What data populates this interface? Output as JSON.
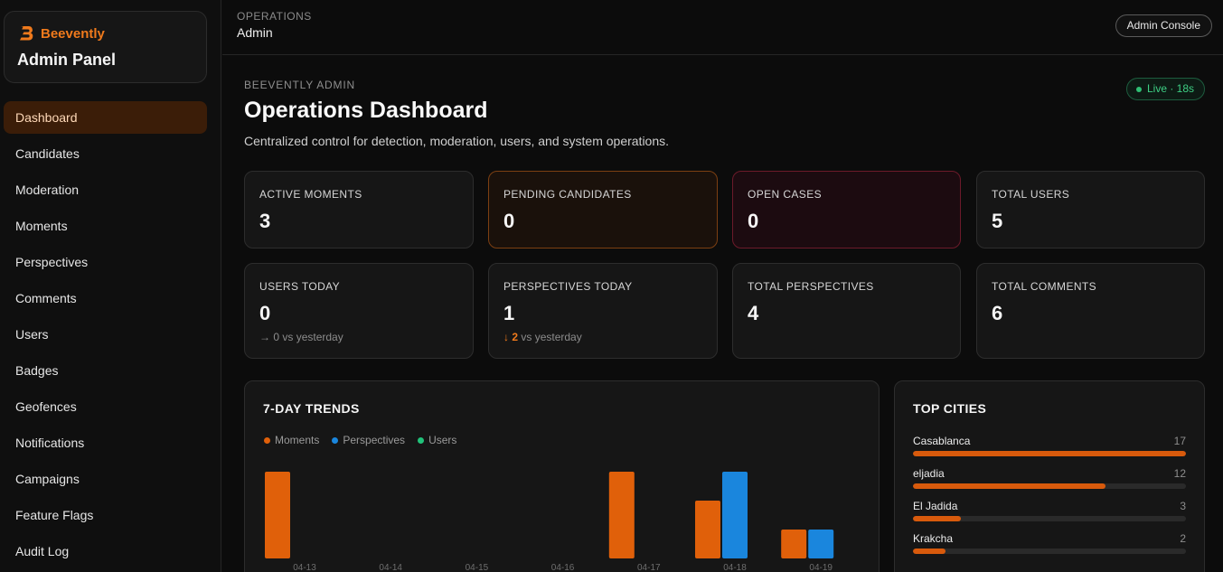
{
  "brand": {
    "name": "Beevently",
    "subtitle": "Admin Panel",
    "accent": "#f07a1c"
  },
  "sidebar": {
    "items": [
      {
        "label": "Dashboard",
        "active": true
      },
      {
        "label": "Candidates"
      },
      {
        "label": "Moderation"
      },
      {
        "label": "Moments"
      },
      {
        "label": "Perspectives"
      },
      {
        "label": "Comments"
      },
      {
        "label": "Users"
      },
      {
        "label": "Badges"
      },
      {
        "label": "Geofences"
      },
      {
        "label": "Notifications"
      },
      {
        "label": "Campaigns"
      },
      {
        "label": "Feature Flags"
      },
      {
        "label": "Audit Log"
      }
    ]
  },
  "topbar": {
    "section": "OPERATIONS",
    "page": "Admin",
    "console_button": "Admin Console"
  },
  "header": {
    "eyebrow": "BEEVENTLY ADMIN",
    "title": "Operations Dashboard",
    "description": "Centralized control for detection, moderation, users, and system operations.",
    "live_badge": "Live · 18s"
  },
  "stats": [
    {
      "label": "ACTIVE MOMENTS",
      "value": "3"
    },
    {
      "label": "PENDING CANDIDATES",
      "value": "0"
    },
    {
      "label": "OPEN CASES",
      "value": "0"
    },
    {
      "label": "TOTAL USERS",
      "value": "5"
    },
    {
      "label": "USERS TODAY",
      "value": "0",
      "delta_arrow": "→",
      "delta_value": "0",
      "delta_text": "vs yesterday"
    },
    {
      "label": "PERSPECTIVES TODAY",
      "value": "1",
      "delta_arrow": "↓",
      "delta_value": "2",
      "delta_text": "vs yesterday"
    },
    {
      "label": "TOTAL PERSPECTIVES",
      "value": "4"
    },
    {
      "label": "TOTAL COMMENTS",
      "value": "6"
    }
  ],
  "trends": {
    "title": "7-DAY TRENDS",
    "legend": [
      {
        "label": "Moments",
        "color": "#e0600a"
      },
      {
        "label": "Perspectives",
        "color": "#1a86dd"
      },
      {
        "label": "Users",
        "color": "#21c27a"
      }
    ]
  },
  "chart_data": {
    "type": "bar",
    "categories": [
      "04-13",
      "04-14",
      "04-15",
      "04-16",
      "04-17",
      "04-18",
      "04-19"
    ],
    "series": [
      {
        "name": "Moments",
        "values": [
          3,
          0,
          0,
          0,
          3,
          2,
          1
        ]
      },
      {
        "name": "Perspectives",
        "values": [
          0,
          0,
          0,
          0,
          0,
          3,
          1
        ]
      },
      {
        "name": "Users",
        "values": [
          0,
          0,
          0,
          0,
          0,
          0,
          0
        ]
      }
    ],
    "ylim": [
      0,
      3
    ],
    "grid": false,
    "legend_placement": "top-left"
  },
  "top_cities": {
    "title": "TOP CITIES",
    "max": 17,
    "items": [
      {
        "name": "Casablanca",
        "count": "17",
        "value": 17
      },
      {
        "name": "eljadia",
        "count": "12",
        "value": 12
      },
      {
        "name": "El Jadida",
        "count": "3",
        "value": 3
      },
      {
        "name": "Krakcha",
        "count": "2",
        "value": 2
      }
    ]
  }
}
